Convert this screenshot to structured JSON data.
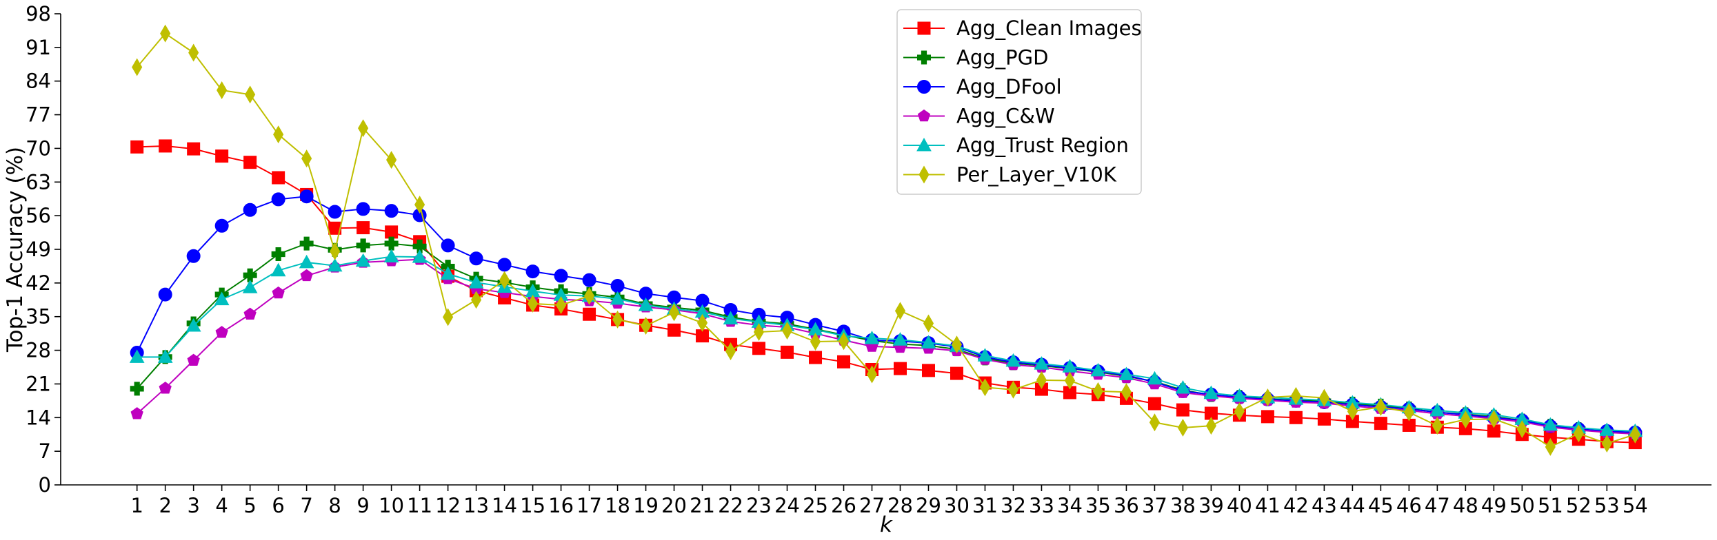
{
  "chart_data": {
    "type": "line",
    "title": "",
    "xlabel": "k",
    "ylabel": "Top-1 Accuracy (%)",
    "ylim": [
      0,
      98
    ],
    "yticks": [
      0,
      7,
      14,
      21,
      28,
      35,
      42,
      49,
      56,
      63,
      70,
      77,
      84,
      91,
      98
    ],
    "x": [
      1,
      2,
      3,
      4,
      5,
      6,
      7,
      8,
      9,
      10,
      11,
      12,
      13,
      14,
      15,
      16,
      17,
      18,
      19,
      20,
      21,
      22,
      23,
      24,
      25,
      26,
      27,
      28,
      29,
      30,
      31,
      32,
      33,
      34,
      35,
      36,
      37,
      38,
      39,
      40,
      41,
      42,
      43,
      44,
      45,
      46,
      47,
      48,
      49,
      50,
      51,
      52,
      53,
      54
    ],
    "legend_position": "top-center",
    "grid": false,
    "series": [
      {
        "name": "Agg_Clean Images",
        "color": "#ff0000",
        "marker": "square",
        "values": [
          70.3,
          70.5,
          69.9,
          68.4,
          67.1,
          63.9,
          60.4,
          53.4,
          53.5,
          52.6,
          50.6,
          43.4,
          40.4,
          38.9,
          37.4,
          36.6,
          35.5,
          34.4,
          33.2,
          32.2,
          31.0,
          29.2,
          28.4,
          27.6,
          26.5,
          25.6,
          24.0,
          24.2,
          23.8,
          23.2,
          21.2,
          20.3,
          19.9,
          19.2,
          18.8,
          18.0,
          16.9,
          15.6,
          14.9,
          14.5,
          14.2,
          14.0,
          13.7,
          13.2,
          12.8,
          12.4,
          12.0,
          11.7,
          11.2,
          10.5,
          9.9,
          9.5,
          9.0,
          8.8
        ]
      },
      {
        "name": "Agg_PGD",
        "color": "#007f00",
        "marker": "plus",
        "values": [
          20.0,
          26.6,
          33.6,
          39.6,
          43.6,
          48.0,
          50.2,
          48.9,
          49.8,
          50.2,
          49.6,
          45.4,
          42.9,
          42.1,
          41.1,
          40.3,
          39.7,
          39.0,
          37.6,
          36.9,
          36.3,
          34.9,
          34.0,
          33.5,
          32.4,
          31.2,
          30.0,
          29.3,
          29.0,
          28.2,
          26.3,
          25.3,
          24.8,
          24.2,
          23.5,
          22.6,
          21.5,
          19.7,
          18.7,
          18.3,
          17.9,
          17.6,
          17.4,
          16.9,
          16.5,
          15.9,
          15.1,
          14.7,
          14.2,
          13.4,
          12.3,
          11.6,
          11.0,
          10.7
        ]
      },
      {
        "name": "Agg_DFool",
        "color": "#0000ff",
        "marker": "circle",
        "values": [
          27.5,
          39.6,
          47.6,
          53.9,
          57.2,
          59.4,
          60.0,
          56.8,
          57.4,
          57.0,
          56.1,
          49.8,
          47.1,
          45.8,
          44.4,
          43.5,
          42.6,
          41.4,
          39.8,
          39.0,
          38.3,
          36.4,
          35.4,
          34.8,
          33.3,
          31.9,
          30.1,
          29.9,
          29.5,
          28.7,
          26.6,
          25.5,
          25.0,
          24.3,
          23.6,
          22.8,
          21.4,
          19.5,
          18.8,
          18.2,
          17.8,
          17.5,
          17.2,
          16.7,
          16.2,
          15.8,
          15.1,
          14.6,
          14.0,
          13.4,
          12.2,
          11.6,
          11.2,
          10.9
        ]
      },
      {
        "name": "Agg_C&W",
        "color": "#bf00bf",
        "marker": "pentagon",
        "values": [
          14.8,
          20.1,
          25.9,
          31.7,
          35.5,
          39.9,
          43.5,
          45.3,
          46.3,
          46.6,
          46.9,
          42.9,
          40.8,
          40.0,
          39.2,
          38.6,
          38.3,
          37.8,
          37.0,
          36.4,
          35.6,
          34.0,
          33.2,
          32.8,
          31.5,
          30.1,
          28.8,
          28.6,
          28.4,
          27.9,
          26.1,
          25.0,
          24.5,
          23.7,
          23.0,
          22.3,
          21.0,
          19.2,
          18.5,
          18.0,
          17.6,
          17.2,
          17.0,
          16.4,
          15.9,
          15.5,
          14.8,
          14.3,
          13.8,
          13.1,
          12.0,
          11.4,
          10.9,
          10.6
        ]
      },
      {
        "name": "Agg_Trust Region",
        "color": "#00bfbf",
        "marker": "triangle",
        "values": [
          26.6,
          26.6,
          33.1,
          38.6,
          41.1,
          44.6,
          46.3,
          45.6,
          46.6,
          47.5,
          47.4,
          43.9,
          42.1,
          41.2,
          40.3,
          39.5,
          39.3,
          38.7,
          37.4,
          36.6,
          36.0,
          34.6,
          33.9,
          33.2,
          32.3,
          31.0,
          30.5,
          30.2,
          29.6,
          28.9,
          26.9,
          25.8,
          25.2,
          24.6,
          23.8,
          23.0,
          22.1,
          20.2,
          19.1,
          18.5,
          18.2,
          17.9,
          17.6,
          17.1,
          16.7,
          16.1,
          15.5,
          15.0,
          14.6,
          13.7,
          12.5,
          11.9,
          11.4,
          11.2
        ]
      },
      {
        "name": "Per_Layer_V10K",
        "color": "#bfbf00",
        "marker": "diamond",
        "values": [
          86.9,
          93.9,
          89.9,
          82.1,
          81.2,
          72.9,
          67.9,
          48.6,
          74.2,
          67.6,
          58.3,
          34.9,
          38.5,
          42.6,
          37.7,
          37.4,
          39.3,
          34.4,
          33.1,
          35.9,
          33.7,
          27.8,
          31.8,
          32.1,
          29.8,
          29.9,
          23.0,
          36.2,
          33.6,
          29.2,
          20.3,
          19.8,
          21.8,
          21.7,
          19.5,
          19.3,
          13.0,
          11.9,
          12.3,
          15.3,
          18.2,
          18.5,
          18.1,
          15.3,
          16.2,
          15.1,
          12.3,
          13.6,
          13.7,
          11.6,
          7.9,
          10.7,
          8.6,
          10.5
        ]
      }
    ]
  }
}
